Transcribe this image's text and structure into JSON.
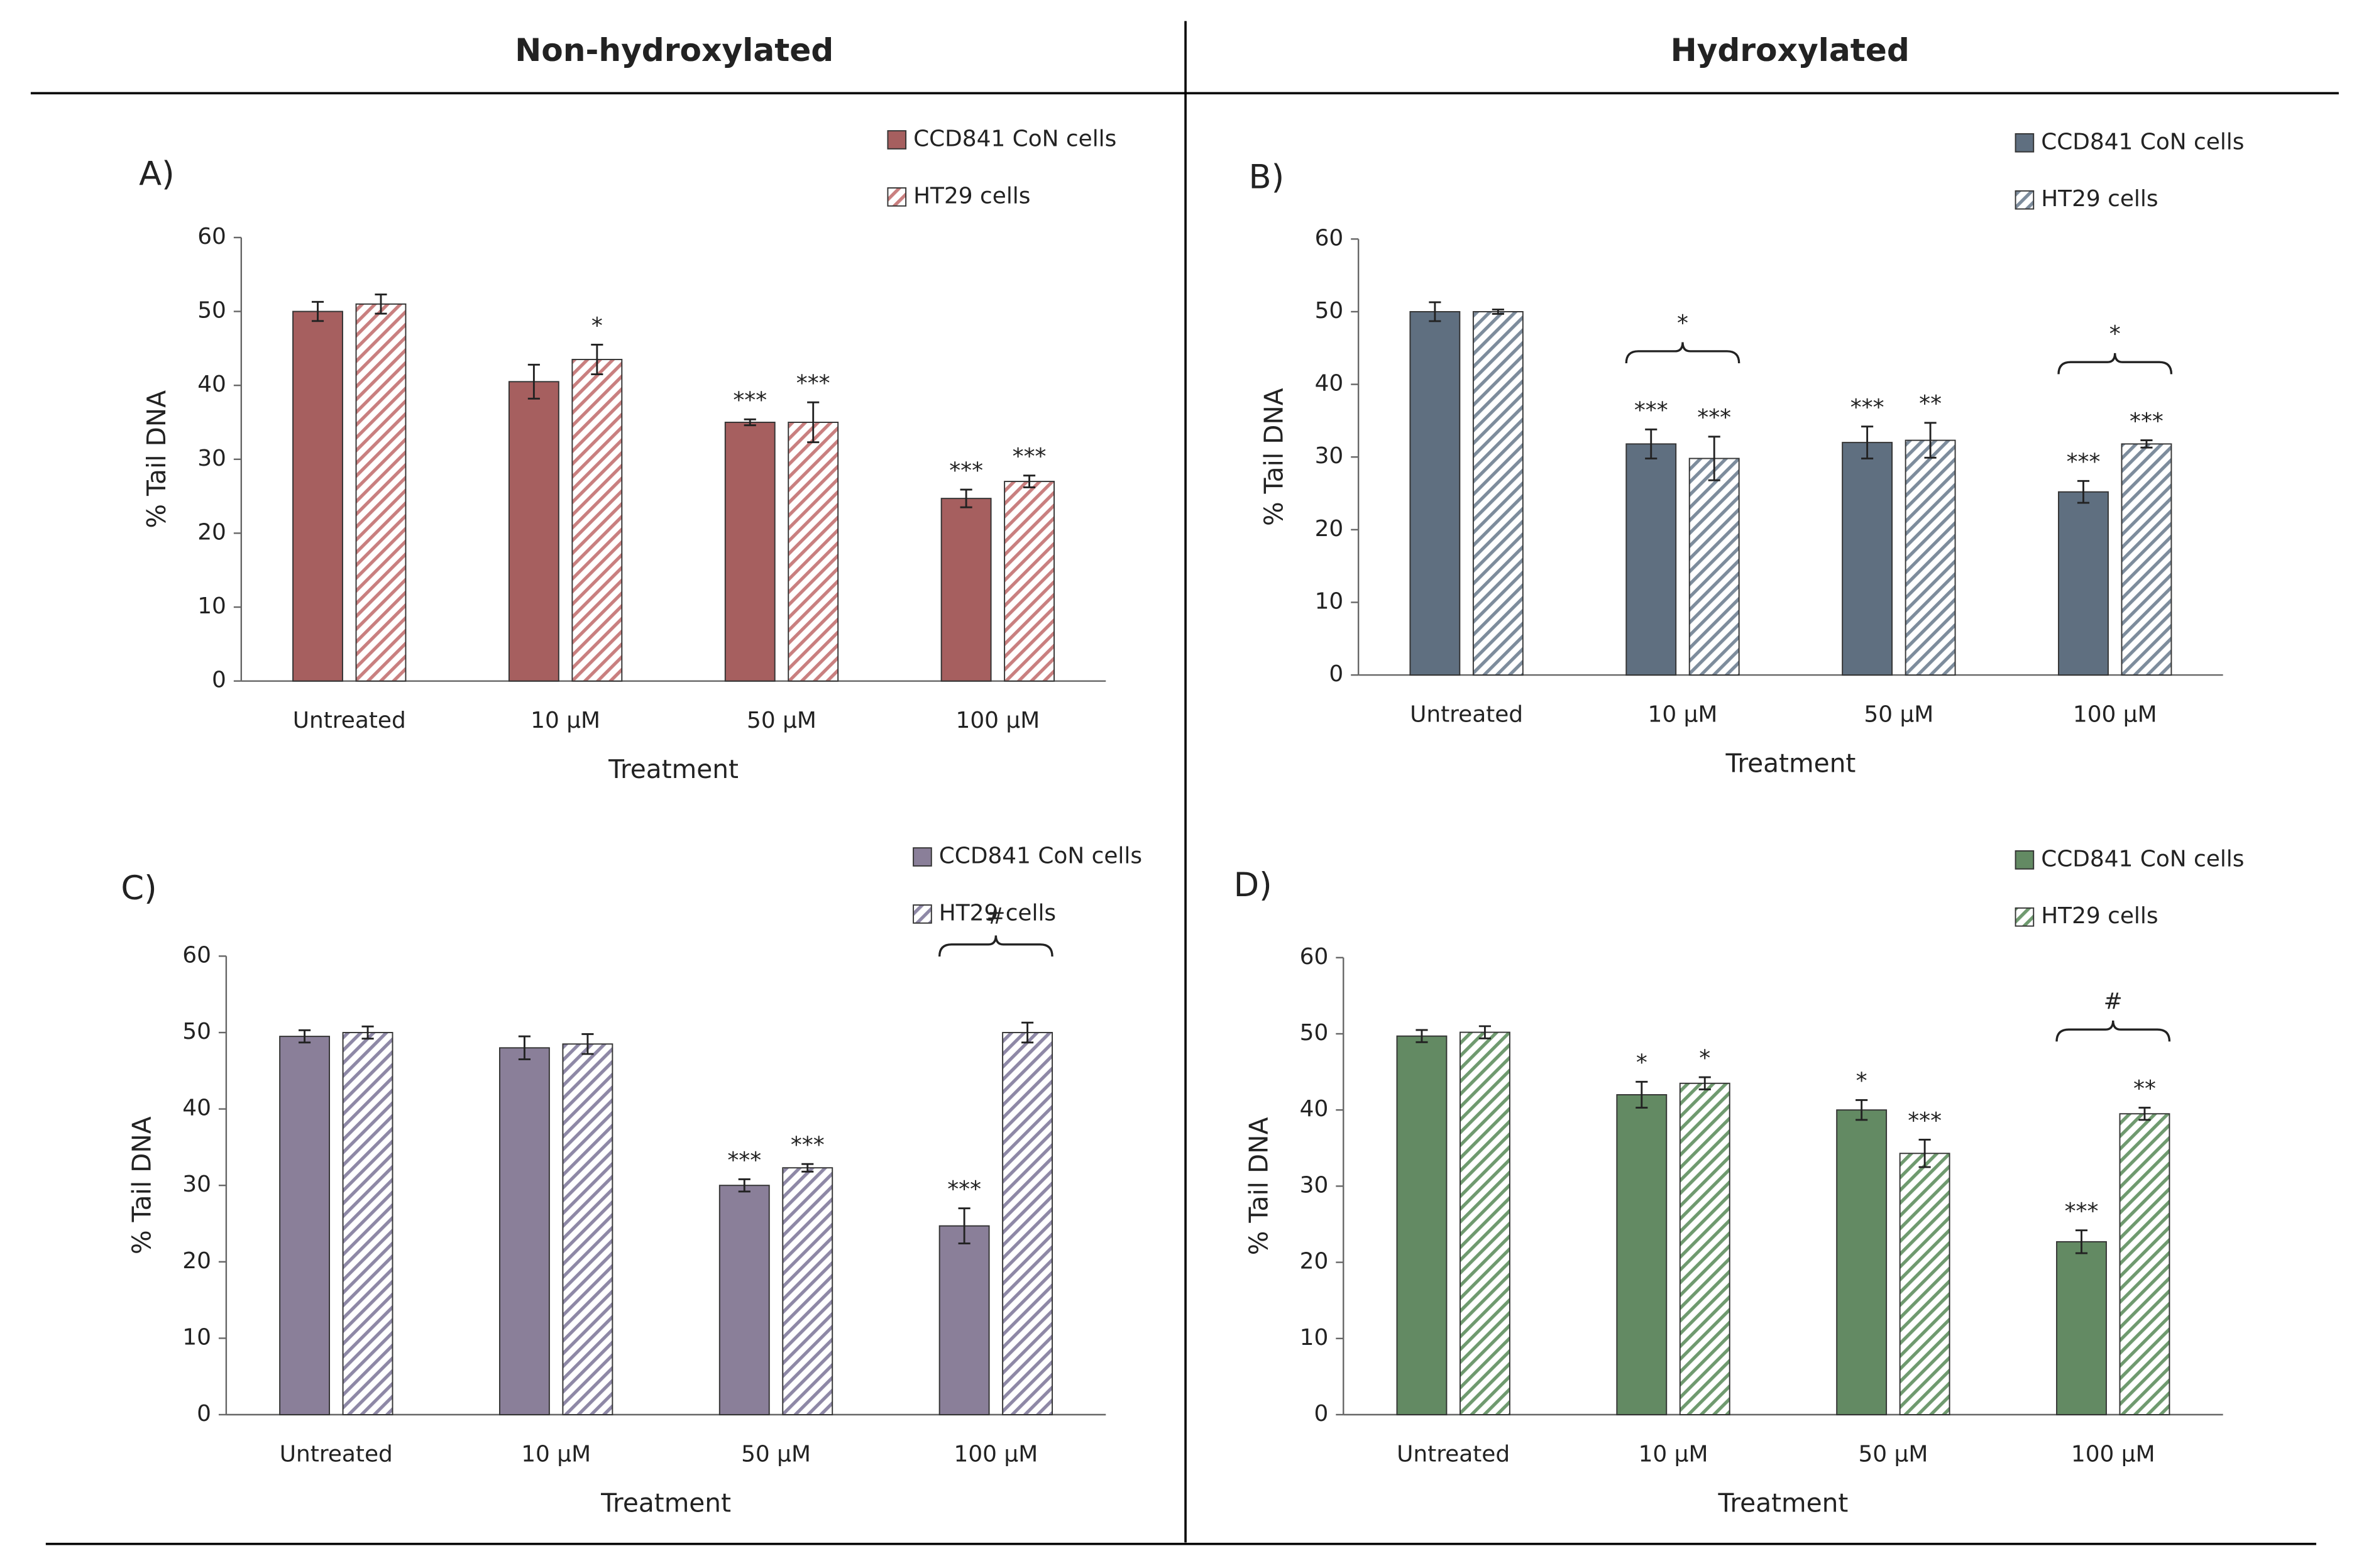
{
  "column_headers": [
    "Non-hydroxylated",
    "Hydroxylated"
  ],
  "chart_data": [
    {
      "type": "bar",
      "panel_label": "A)",
      "xlabel": "Treatment",
      "ylabel": "% Tail DNA",
      "categories": [
        "Untreated",
        "10 µM",
        "50 µM",
        "100 µM"
      ],
      "ylim": [
        0,
        60
      ],
      "yticks": [
        0,
        10,
        20,
        30,
        40,
        50,
        60
      ],
      "series": [
        {
          "name": "CCD841 CoN cells",
          "color": "#a65f5f",
          "hatch": false,
          "values": [
            50,
            40.5,
            35,
            24.7
          ],
          "errors": [
            1.3,
            2.3,
            0.4,
            1.2
          ],
          "significance": [
            null,
            null,
            "***",
            "***"
          ]
        },
        {
          "name": "HT29 cells",
          "color": "#c97f7f",
          "hatch": true,
          "values": [
            51,
            43.5,
            35,
            27
          ],
          "errors": [
            1.3,
            2,
            2.7,
            0.8
          ],
          "significance": [
            null,
            "*",
            "***",
            "***"
          ]
        }
      ],
      "brackets": []
    },
    {
      "type": "bar",
      "panel_label": "B)",
      "xlabel": "Treatment",
      "ylabel": "% Tail DNA",
      "categories": [
        "Untreated",
        "10 µM",
        "50 µM",
        "100 µM"
      ],
      "ylim": [
        0,
        60
      ],
      "yticks": [
        0,
        10,
        20,
        30,
        40,
        50,
        60
      ],
      "series": [
        {
          "name": "CCD841 CoN cells",
          "color": "#5f6f80",
          "hatch": false,
          "values": [
            50,
            31.8,
            32,
            25.2
          ],
          "errors": [
            1.3,
            2,
            2.2,
            1.5
          ],
          "significance": [
            null,
            "***",
            "***",
            "***"
          ]
        },
        {
          "name": "HT29 cells",
          "color": "#7d8c9c",
          "hatch": true,
          "values": [
            50,
            29.8,
            32.3,
            31.8
          ],
          "errors": [
            0.3,
            3,
            2.4,
            0.5
          ],
          "significance": [
            null,
            "***",
            "**",
            "***"
          ]
        }
      ],
      "brackets": [
        {
          "category": 1,
          "label": "*"
        },
        {
          "category": 3,
          "label": "*"
        }
      ]
    },
    {
      "type": "bar",
      "panel_label": "C)",
      "xlabel": "Treatment",
      "ylabel": "% Tail DNA",
      "categories": [
        "Untreated",
        "10 µM",
        "50 µM",
        "100 µM"
      ],
      "ylim": [
        0,
        60
      ],
      "yticks": [
        0,
        10,
        20,
        30,
        40,
        50,
        60
      ],
      "series": [
        {
          "name": "CCD841 CoN cells",
          "color": "#8a7f99",
          "hatch": false,
          "values": [
            49.5,
            48,
            30,
            24.7
          ],
          "errors": [
            0.8,
            1.5,
            0.8,
            2.3
          ],
          "significance": [
            null,
            null,
            "***",
            "***"
          ]
        },
        {
          "name": "HT29 cells",
          "color": "#8e88a6",
          "hatch": true,
          "values": [
            50,
            48.5,
            32.3,
            50
          ],
          "errors": [
            0.8,
            1.3,
            0.5,
            1.3
          ],
          "significance": [
            null,
            null,
            "***",
            null
          ]
        }
      ],
      "brackets": [
        {
          "category": 3,
          "label": "#"
        }
      ]
    },
    {
      "type": "bar",
      "panel_label": "D)",
      "xlabel": "Treatment",
      "ylabel": "% Tail DNA",
      "categories": [
        "Untreated",
        "10 µM",
        "50 µM",
        "100 µM"
      ],
      "ylim": [
        0,
        60
      ],
      "yticks": [
        0,
        10,
        20,
        30,
        40,
        50,
        60
      ],
      "series": [
        {
          "name": "CCD841 CoN cells",
          "color": "#638a63",
          "hatch": false,
          "values": [
            49.7,
            42,
            40,
            22.7
          ],
          "errors": [
            0.8,
            1.7,
            1.3,
            1.5
          ],
          "significance": [
            null,
            "*",
            "*",
            "***"
          ]
        },
        {
          "name": "HT29 cells",
          "color": "#6f9a6f",
          "hatch": true,
          "values": [
            50.2,
            43.5,
            34.3,
            39.5
          ],
          "errors": [
            0.8,
            0.8,
            1.8,
            0.8
          ],
          "significance": [
            null,
            "*",
            "***",
            "**"
          ]
        }
      ],
      "brackets": [
        {
          "category": 3,
          "label": "#"
        }
      ]
    }
  ]
}
